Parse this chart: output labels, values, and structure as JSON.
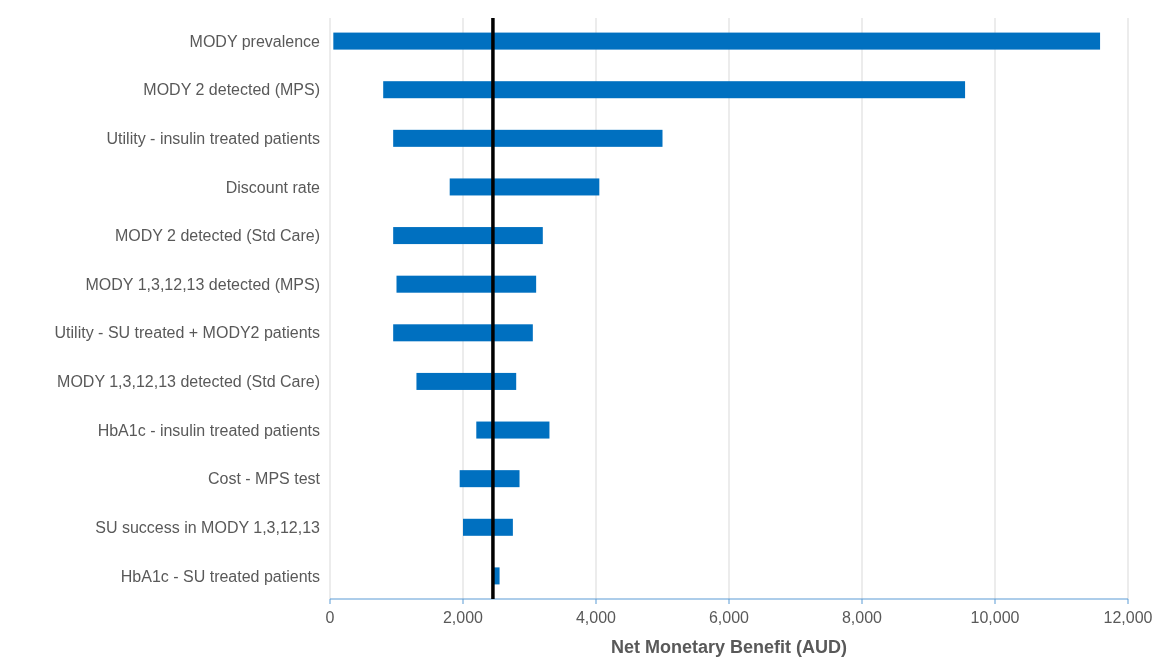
{
  "chart_data": {
    "type": "bar",
    "orientation": "horizontal",
    "xlabel": "Net Monetary Benefit (AUD)",
    "categories": [
      "MODY prevalence",
      "MODY 2 detected (MPS)",
      "Utility - insulin treated patients",
      "Discount rate",
      "MODY 2 detected (Std Care)",
      "MODY 1,3,12,13 detected (MPS)",
      "Utility - SU treated + MODY2 patients",
      "MODY 1,3,12,13 detected (Std Care)",
      "HbA1c - insulin treated patients",
      "Cost - MPS test",
      "SU success in MODY 1,3,12,13",
      "HbA1c - SU treated patients"
    ],
    "base": [
      50,
      800,
      950,
      1800,
      950,
      1000,
      950,
      1300,
      2200,
      1950,
      2000,
      2450
    ],
    "values": [
      11530,
      8750,
      4050,
      2250,
      2250,
      2100,
      2100,
      1500,
      1100,
      900,
      750,
      100
    ],
    "color": "#0070c0",
    "xlim": [
      0,
      12000
    ],
    "xticks": [
      {
        "value": 0,
        "label": "0"
      },
      {
        "value": 2000,
        "label": "2,000"
      },
      {
        "value": 4000,
        "label": "4,000"
      },
      {
        "value": 6000,
        "label": "6,000"
      },
      {
        "value": 8000,
        "label": "8,000"
      },
      {
        "value": 10000,
        "label": "10,000"
      },
      {
        "value": 12000,
        "label": "12,000"
      }
    ],
    "grid": "x",
    "ref_lines": [
      {
        "axis": "x",
        "value": 2450,
        "color": "#000000"
      }
    ]
  }
}
